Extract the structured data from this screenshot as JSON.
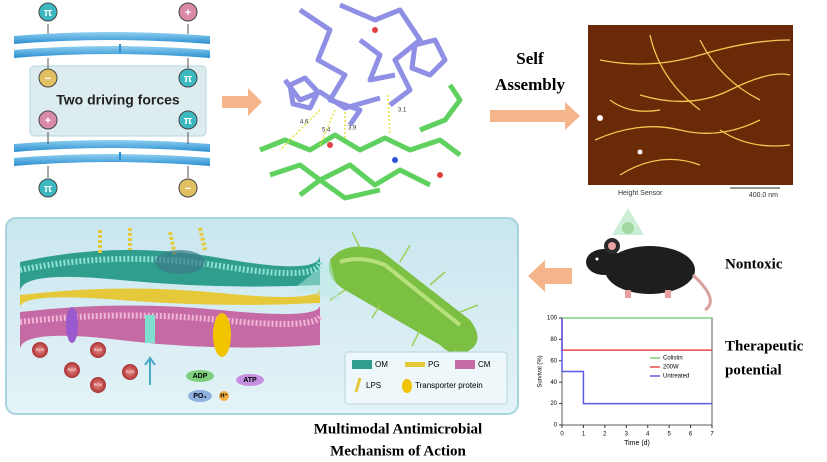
{
  "membrane_panel": {
    "label": "Two driving forces",
    "charges": [
      "π",
      "+",
      "−",
      "π",
      "+",
      "π",
      "π",
      "−"
    ]
  },
  "structure_panel": {
    "distances": [
      "4.6",
      "5.4",
      "3.9",
      "3.1"
    ]
  },
  "assembly_label": {
    "line1": "Self",
    "line2": "Assembly"
  },
  "afm_panel": {
    "channel": "Height Sensor",
    "scale": "400.0 nm"
  },
  "mechanism_panel": {
    "title_line1": "Multimodal Antimicrobial",
    "title_line2": "Mechanism of Action",
    "ros_labels": [
      "ROS",
      "ROS",
      "ROS",
      "ROS",
      "ROS"
    ],
    "molecules": [
      "ADP",
      "ATP",
      "PO₄",
      "H⁺"
    ],
    "legend": [
      "OM",
      "PG",
      "CM",
      "LPS",
      "Transporter protein"
    ]
  },
  "mouse_label": "Nontoxic",
  "therapeutic_label": {
    "line1": "Therapeutic",
    "line2": "potential"
  },
  "survival_chart": {
    "type": "line",
    "ylabel": "Survival (%)",
    "xlabel": "Time (d)",
    "x": [
      0,
      1,
      2,
      3,
      4,
      5,
      6,
      7
    ],
    "xlim": [
      0,
      7
    ],
    "ylim": [
      0,
      100
    ],
    "xticks": [
      0,
      1,
      2,
      3,
      4,
      5,
      6,
      7
    ],
    "yticks": [
      0,
      20,
      40,
      60,
      80,
      100
    ],
    "series": [
      {
        "name": "Colistin",
        "color": "#7fd27f",
        "values": [
          100,
          100,
          100,
          100,
          100,
          100,
          100,
          100
        ]
      },
      {
        "name": "200W",
        "color": "#e8474a",
        "values": [
          100,
          70,
          70,
          70,
          70,
          70,
          70,
          70
        ]
      },
      {
        "name": "Untreated",
        "color": "#5a5ae6",
        "values": [
          100,
          50,
          20,
          20,
          20,
          20,
          20,
          20
        ]
      }
    ]
  }
}
